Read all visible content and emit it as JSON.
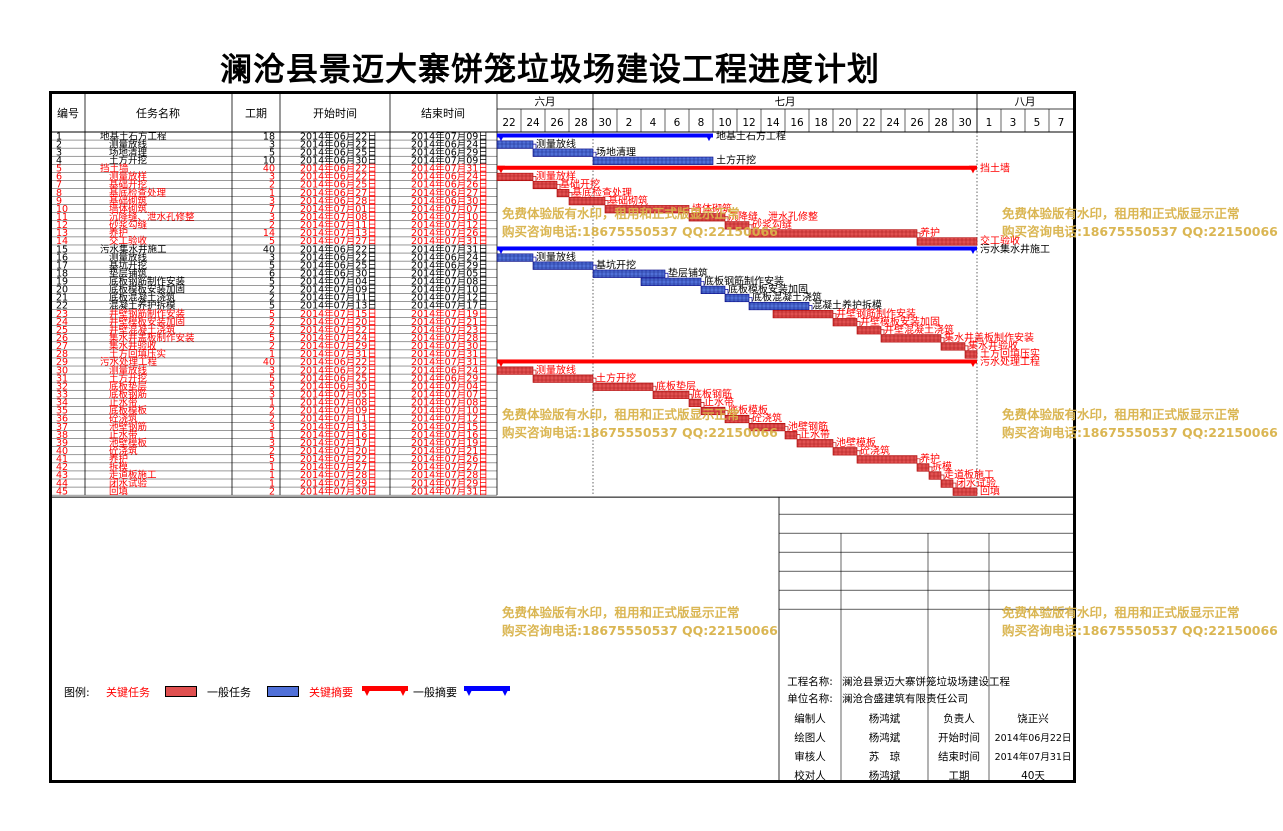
{
  "title": "澜沧县景迈大寨饼笼垃圾场建设工程进度计划",
  "headers": {
    "no": "编号",
    "name": "任务名称",
    "duration": "工期",
    "start": "开始时间",
    "end": "结束时间"
  },
  "months": [
    {
      "label": "六月",
      "from": 0,
      "to": 4
    },
    {
      "label": "七月",
      "from": 4,
      "to": 20
    },
    {
      "label": "八月",
      "from": 20,
      "to": 24
    }
  ],
  "days": [
    "22",
    "24",
    "26",
    "28",
    "30",
    "2",
    "4",
    "6",
    "8",
    "10",
    "12",
    "14",
    "16",
    "18",
    "20",
    "22",
    "24",
    "26",
    "28",
    "30",
    "1",
    "3",
    "5",
    "7"
  ],
  "chart_data": {
    "type": "gantt",
    "x_origin": "2014-06-22",
    "x_unit": "day",
    "tasks": [
      {
        "no": "1",
        "name": "地基土石方工程",
        "dur": 18,
        "start": "2014年06月22日",
        "end": "2014年07月09日",
        "s": 0,
        "d": 18,
        "kind": "ng",
        "lvl": 0,
        "label": "地基土石方工程"
      },
      {
        "no": "2",
        "name": "测量放线",
        "dur": 3,
        "start": "2014年06月22日",
        "end": "2014年06月24日",
        "s": 0,
        "d": 3,
        "kind": "nt",
        "lvl": 1,
        "label": "测量放线"
      },
      {
        "no": "3",
        "name": "场地清理",
        "dur": 5,
        "start": "2014年06月25日",
        "end": "2014年06月29日",
        "s": 3,
        "d": 5,
        "kind": "nt",
        "lvl": 1,
        "label": "场地清理"
      },
      {
        "no": "4",
        "name": "土方开挖",
        "dur": 10,
        "start": "2014年06月30日",
        "end": "2014年07月09日",
        "s": 8,
        "d": 10,
        "kind": "nt",
        "lvl": 1,
        "label": "土方开挖"
      },
      {
        "no": "5",
        "name": "挡土墙",
        "dur": 40,
        "start": "2014年06月22日",
        "end": "2014年07月31日",
        "s": 0,
        "d": 40,
        "kind": "cg",
        "lvl": 0,
        "label": "挡土墙"
      },
      {
        "no": "6",
        "name": "测量放样",
        "dur": 3,
        "start": "2014年06月22日",
        "end": "2014年06月24日",
        "s": 0,
        "d": 3,
        "kind": "ct",
        "lvl": 1,
        "label": "测量放样"
      },
      {
        "no": "7",
        "name": "基础开挖",
        "dur": 2,
        "start": "2014年06月25日",
        "end": "2014年06月26日",
        "s": 3,
        "d": 2,
        "kind": "ct",
        "lvl": 1,
        "label": "基础开挖"
      },
      {
        "no": "8",
        "name": "基底检查处理",
        "dur": 1,
        "start": "2014年06月27日",
        "end": "2014年06月27日",
        "s": 5,
        "d": 1,
        "kind": "ct",
        "lvl": 1,
        "label": "基底检查处理"
      },
      {
        "no": "9",
        "name": "基础砌筑",
        "dur": 3,
        "start": "2014年06月28日",
        "end": "2014年06月30日",
        "s": 6,
        "d": 3,
        "kind": "ct",
        "lvl": 1,
        "label": "基础砌筑"
      },
      {
        "no": "10",
        "name": "墙体砌筑",
        "dur": 7,
        "start": "2014年07月01日",
        "end": "2014年07月07日",
        "s": 9,
        "d": 7,
        "kind": "ct",
        "lvl": 1,
        "label": "墙体砌筑"
      },
      {
        "no": "11",
        "name": "沉降缝、泄水孔修整",
        "dur": 3,
        "start": "2014年07月08日",
        "end": "2014年07月10日",
        "s": 16,
        "d": 3,
        "kind": "ct",
        "lvl": 1,
        "label": "沉降缝、泄水孔修整"
      },
      {
        "no": "12",
        "name": "砂浆勾缝",
        "dur": 2,
        "start": "2014年07月11日",
        "end": "2014年07月12日",
        "s": 19,
        "d": 2,
        "kind": "ct",
        "lvl": 1,
        "label": "砂浆勾缝"
      },
      {
        "no": "13",
        "name": "养护",
        "dur": 14,
        "start": "2014年07月13日",
        "end": "2014年07月26日",
        "s": 21,
        "d": 14,
        "kind": "ct",
        "lvl": 1,
        "label": "养护"
      },
      {
        "no": "14",
        "name": "交工验收",
        "dur": 5,
        "start": "2014年07月27日",
        "end": "2014年07月31日",
        "s": 35,
        "d": 5,
        "kind": "ct",
        "lvl": 1,
        "label": "交工验收"
      },
      {
        "no": "15",
        "name": "污水集水井施工",
        "dur": 40,
        "start": "2014年06月22日",
        "end": "2014年07月31日",
        "s": 0,
        "d": 40,
        "kind": "ng",
        "lvl": 0,
        "label": "污水集水井施工"
      },
      {
        "no": "16",
        "name": "测量放线",
        "dur": 3,
        "start": "2014年06月22日",
        "end": "2014年06月24日",
        "s": 0,
        "d": 3,
        "kind": "nt",
        "lvl": 1,
        "label": "测量放线"
      },
      {
        "no": "17",
        "name": "基坑开挖",
        "dur": 5,
        "start": "2014年06月25日",
        "end": "2014年06月29日",
        "s": 3,
        "d": 5,
        "kind": "nt",
        "lvl": 1,
        "label": "基坑开挖"
      },
      {
        "no": "18",
        "name": "垫层铺筑",
        "dur": 6,
        "start": "2014年06月30日",
        "end": "2014年07月05日",
        "s": 8,
        "d": 6,
        "kind": "nt",
        "lvl": 1,
        "label": "垫层铺筑"
      },
      {
        "no": "19",
        "name": "底板钢筋制作安装",
        "dur": 5,
        "start": "2014年07月04日",
        "end": "2014年07月08日",
        "s": 12,
        "d": 5,
        "kind": "nt",
        "lvl": 1,
        "label": "底板钢筋制作安装"
      },
      {
        "no": "20",
        "name": "底板模板安装加固",
        "dur": 2,
        "start": "2014年07月09日",
        "end": "2014年07月10日",
        "s": 17,
        "d": 2,
        "kind": "nt",
        "lvl": 1,
        "label": "底板模板安装加固"
      },
      {
        "no": "21",
        "name": "底板混凝土浇筑",
        "dur": 2,
        "start": "2014年07月11日",
        "end": "2014年07月12日",
        "s": 19,
        "d": 2,
        "kind": "nt",
        "lvl": 1,
        "label": "底板混凝土浇筑"
      },
      {
        "no": "22",
        "name": "混凝土养护拆模",
        "dur": 5,
        "start": "2014年07月13日",
        "end": "2014年07月17日",
        "s": 21,
        "d": 5,
        "kind": "nt",
        "lvl": 1,
        "label": "混凝土养护拆模"
      },
      {
        "no": "23",
        "name": "井壁钢筋制作安装",
        "dur": 5,
        "start": "2014年07月15日",
        "end": "2014年07月19日",
        "s": 23,
        "d": 5,
        "kind": "ct",
        "lvl": 1,
        "label": "井壁钢筋制作安装"
      },
      {
        "no": "24",
        "name": "井壁模板安装加固",
        "dur": 2,
        "start": "2014年07月20日",
        "end": "2014年07月21日",
        "s": 28,
        "d": 2,
        "kind": "ct",
        "lvl": 1,
        "label": "井壁模板安装加固"
      },
      {
        "no": "25",
        "name": "井壁混凝土浇筑",
        "dur": 2,
        "start": "2014年07月22日",
        "end": "2014年07月23日",
        "s": 30,
        "d": 2,
        "kind": "ct",
        "lvl": 1,
        "label": "井壁混凝土浇筑"
      },
      {
        "no": "26",
        "name": "集水井盖板制作安装",
        "dur": 5,
        "start": "2014年07月24日",
        "end": "2014年07月28日",
        "s": 32,
        "d": 5,
        "kind": "ct",
        "lvl": 1,
        "label": "集水井盖板制作安装"
      },
      {
        "no": "27",
        "name": "集水井验收",
        "dur": 2,
        "start": "2014年07月29日",
        "end": "2014年07月30日",
        "s": 37,
        "d": 2,
        "kind": "ct",
        "lvl": 1,
        "label": "集水井验收"
      },
      {
        "no": "28",
        "name": "土方回填压实",
        "dur": 1,
        "start": "2014年07月31日",
        "end": "2014年07月31日",
        "s": 39,
        "d": 1,
        "kind": "ct",
        "lvl": 1,
        "label": "土方回填压实"
      },
      {
        "no": "29",
        "name": "污水处理工程",
        "dur": 40,
        "start": "2014年06月22日",
        "end": "2014年07月31日",
        "s": 0,
        "d": 40,
        "kind": "cg",
        "lvl": 0,
        "label": "污水处理工程"
      },
      {
        "no": "30",
        "name": "测量放线",
        "dur": 3,
        "start": "2014年06月22日",
        "end": "2014年06月24日",
        "s": 0,
        "d": 3,
        "kind": "ct",
        "lvl": 1,
        "label": "测量放线"
      },
      {
        "no": "31",
        "name": "土方开挖",
        "dur": 5,
        "start": "2014年06月25日",
        "end": "2014年06月29日",
        "s": 3,
        "d": 5,
        "kind": "ct",
        "lvl": 1,
        "label": "土方开挖"
      },
      {
        "no": "32",
        "name": "底板垫层",
        "dur": 5,
        "start": "2014年06月30日",
        "end": "2014年07月04日",
        "s": 8,
        "d": 5,
        "kind": "ct",
        "lvl": 1,
        "label": "底板垫层"
      },
      {
        "no": "33",
        "name": "底板钢筋",
        "dur": 3,
        "start": "2014年07月05日",
        "end": "2014年07月07日",
        "s": 13,
        "d": 3,
        "kind": "ct",
        "lvl": 1,
        "label": "底板钢筋"
      },
      {
        "no": "34",
        "name": "止水带",
        "dur": 1,
        "start": "2014年07月08日",
        "end": "2014年07月08日",
        "s": 16,
        "d": 1,
        "kind": "ct",
        "lvl": 1,
        "label": "止水带"
      },
      {
        "no": "35",
        "name": "底板模板",
        "dur": 2,
        "start": "2014年07月09日",
        "end": "2014年07月10日",
        "s": 17,
        "d": 2,
        "kind": "ct",
        "lvl": 1,
        "label": "底板模板"
      },
      {
        "no": "36",
        "name": "砼浇筑",
        "dur": 2,
        "start": "2014年07月11日",
        "end": "2014年07月12日",
        "s": 19,
        "d": 2,
        "kind": "ct",
        "lvl": 1,
        "label": "砼浇筑"
      },
      {
        "no": "37",
        "name": "池壁钢筋",
        "dur": 3,
        "start": "2014年07月13日",
        "end": "2014年07月15日",
        "s": 21,
        "d": 3,
        "kind": "ct",
        "lvl": 1,
        "label": "池壁钢筋"
      },
      {
        "no": "38",
        "name": "止水带",
        "dur": 1,
        "start": "2014年07月16日",
        "end": "2014年07月16日",
        "s": 24,
        "d": 1,
        "kind": "ct",
        "lvl": 1,
        "label": "止水带"
      },
      {
        "no": "39",
        "name": "池壁模板",
        "dur": 3,
        "start": "2014年07月17日",
        "end": "2014年07月19日",
        "s": 25,
        "d": 3,
        "kind": "ct",
        "lvl": 1,
        "label": "池壁模板"
      },
      {
        "no": "40",
        "name": "砼浇筑",
        "dur": 2,
        "start": "2014年07月20日",
        "end": "2014年07月21日",
        "s": 28,
        "d": 2,
        "kind": "ct",
        "lvl": 1,
        "label": "砼浇筑"
      },
      {
        "no": "41",
        "name": "养护",
        "dur": 5,
        "start": "2014年07月22日",
        "end": "2014年07月26日",
        "s": 30,
        "d": 5,
        "kind": "ct",
        "lvl": 1,
        "label": "养护"
      },
      {
        "no": "42",
        "name": "拆模",
        "dur": 1,
        "start": "2014年07月27日",
        "end": "2014年07月27日",
        "s": 35,
        "d": 1,
        "kind": "ct",
        "lvl": 1,
        "label": "拆模"
      },
      {
        "no": "43",
        "name": "走道板施工",
        "dur": 1,
        "start": "2014年07月28日",
        "end": "2014年07月28日",
        "s": 36,
        "d": 1,
        "kind": "ct",
        "lvl": 1,
        "label": "走道板施工"
      },
      {
        "no": "44",
        "name": "闭水试验",
        "dur": 1,
        "start": "2014年07月29日",
        "end": "2014年07月29日",
        "s": 37,
        "d": 1,
        "kind": "ct",
        "lvl": 1,
        "label": "闭水试验"
      },
      {
        "no": "45",
        "name": "回填",
        "dur": 2,
        "start": "2014年07月30日",
        "end": "2014年07月31日",
        "s": 38,
        "d": 2,
        "kind": "ct",
        "lvl": 1,
        "label": "回填"
      }
    ]
  },
  "watermark": {
    "line1": "免费体验版有水印，租用和正式版显示正常",
    "line2": "购买咨询电话:18675550537 QQ:22150066"
  },
  "legend": {
    "title": "图例:",
    "critical_task": "关键任务",
    "normal_task": "一般任务",
    "critical_summary": "关键摘要",
    "normal_summary": "一般摘要"
  },
  "colors": {
    "critical": "#ff0000",
    "normal": "#0000ff",
    "critical_fill": "#e05050",
    "normal_fill": "#5070d8"
  },
  "info": {
    "project_label": "工程名称:",
    "project_name": "澜沧县景迈大寨饼笼垃圾场建设工程",
    "unit_label": "单位名称:",
    "unit_name": "澜沧合盛建筑有限责任公司",
    "rows": [
      {
        "a": "编制人",
        "b": "杨鸿斌",
        "c": "负责人",
        "d": "饶正兴"
      },
      {
        "a": "绘图人",
        "b": "杨鸿斌",
        "c": "开始时间",
        "d": "2014年06月22日"
      },
      {
        "a": "审核人",
        "b": "苏　琼",
        "c": "结束时间",
        "d": "2014年07月31日"
      },
      {
        "a": "校对人",
        "b": "杨鸿斌",
        "c": "工期",
        "d": "40天"
      }
    ]
  }
}
